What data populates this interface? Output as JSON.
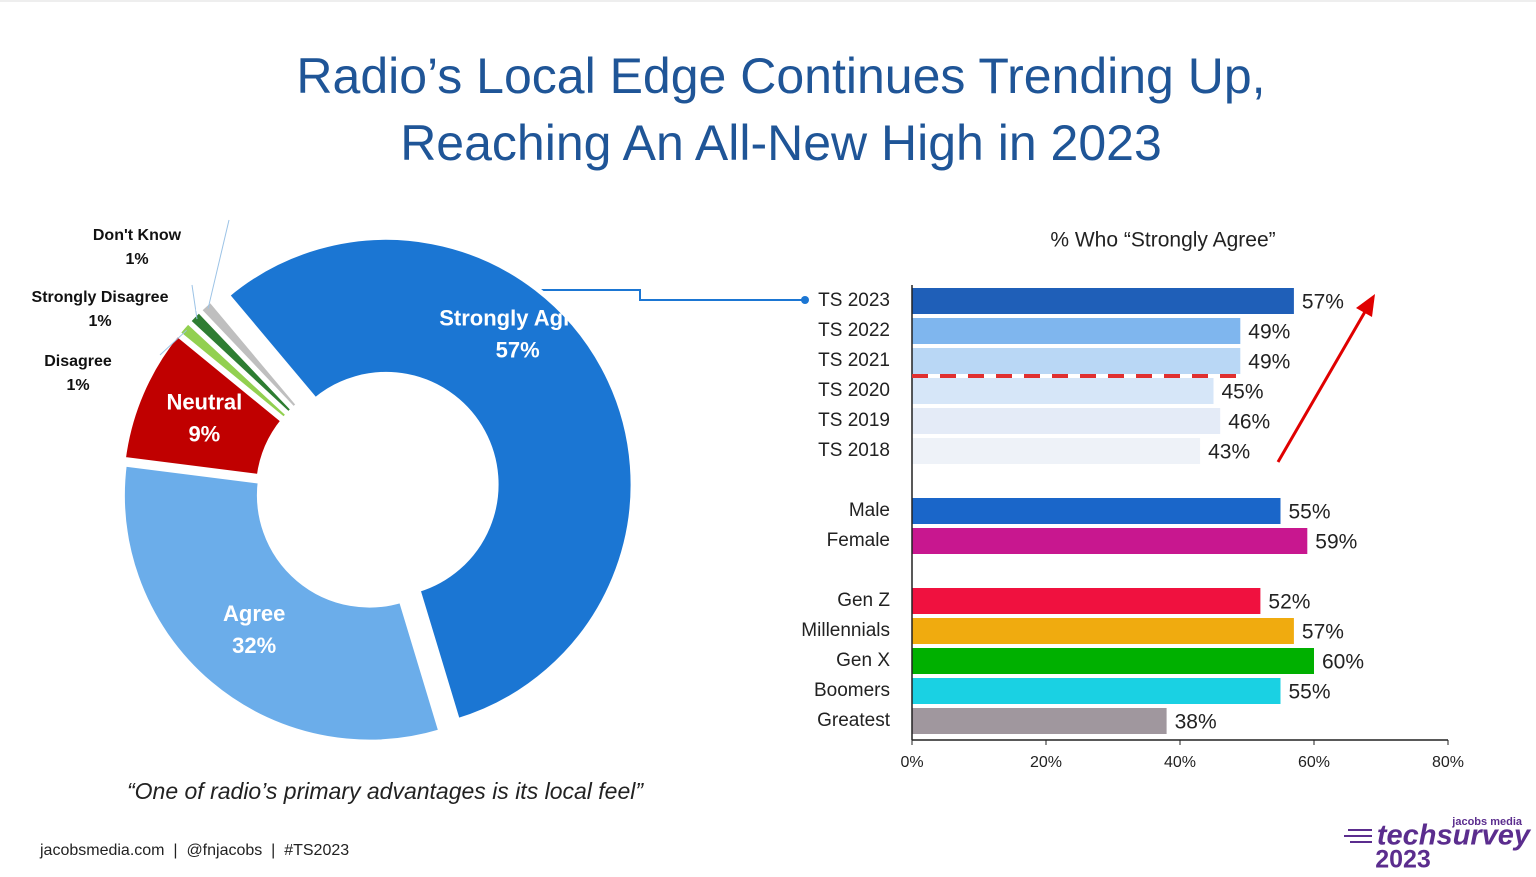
{
  "header": {
    "title_lines": [
      "Radio’s Local Edge Continues Trending Up,",
      "Reaching An All-New High in 2023"
    ]
  },
  "chart_data": [
    {
      "type": "donut",
      "categories": [
        "Strongly Agree",
        "Agree",
        "Neutral",
        "Disagree",
        "Strongly Disagree",
        "Don't Know"
      ],
      "values": [
        57,
        32,
        9,
        1,
        1,
        1
      ],
      "value_labels": [
        "57%",
        "32%",
        "9%",
        "1%",
        "1%",
        "1%"
      ],
      "colors": [
        "#1b76d3",
        "#6badea",
        "#c00000",
        "#92d050",
        "#2e7d32",
        "#bfbfbf"
      ],
      "caption": "“One of radio’s primary advantages is its local feel”"
    },
    {
      "type": "hbar",
      "title": "% Who “Strongly Agree”",
      "categories": [
        "TS 2023",
        "TS 2022",
        "TS 2021",
        "TS 2020",
        "TS 2019",
        "TS 2018",
        null,
        "Male",
        "Female",
        null,
        "Gen Z",
        "Millennials",
        "Gen X",
        "Boomers",
        "Greatest"
      ],
      "values": [
        57,
        49,
        49,
        45,
        46,
        43,
        null,
        55,
        59,
        null,
        52,
        57,
        60,
        55,
        38
      ],
      "value_labels": [
        "57%",
        "49%",
        "49%",
        "45%",
        "46%",
        "43%",
        null,
        "55%",
        "59%",
        null,
        "52%",
        "57%",
        "60%",
        "55%",
        "38%"
      ],
      "colors": [
        "#1f5fb8",
        "#7fb6ee",
        "#b9d7f5",
        "#d6e6f8",
        "#e4ebf7",
        "#eef2f8",
        null,
        "#1a66c9",
        "#c8178f",
        null,
        "#f0113f",
        "#f0ab0f",
        "#00b000",
        "#1ad1e3",
        "#a0979e"
      ],
      "xlim": [
        0,
        80
      ],
      "xticks": [
        {
          "value": 0,
          "label": "0%"
        },
        {
          "value": 20,
          "label": "20%"
        },
        {
          "value": 40,
          "label": "40%"
        },
        {
          "value": 60,
          "label": "60%"
        },
        {
          "value": 80,
          "label": "80%"
        }
      ],
      "reference_line": {
        "value": 49,
        "color": "#e03030"
      }
    }
  ],
  "footer": {
    "text": "jacobsmedia.com  |  @fnjacobs  |  #TS2023",
    "logo_small": "jacobs media",
    "logo_main": "techsurvey",
    "logo_year": "2023"
  }
}
